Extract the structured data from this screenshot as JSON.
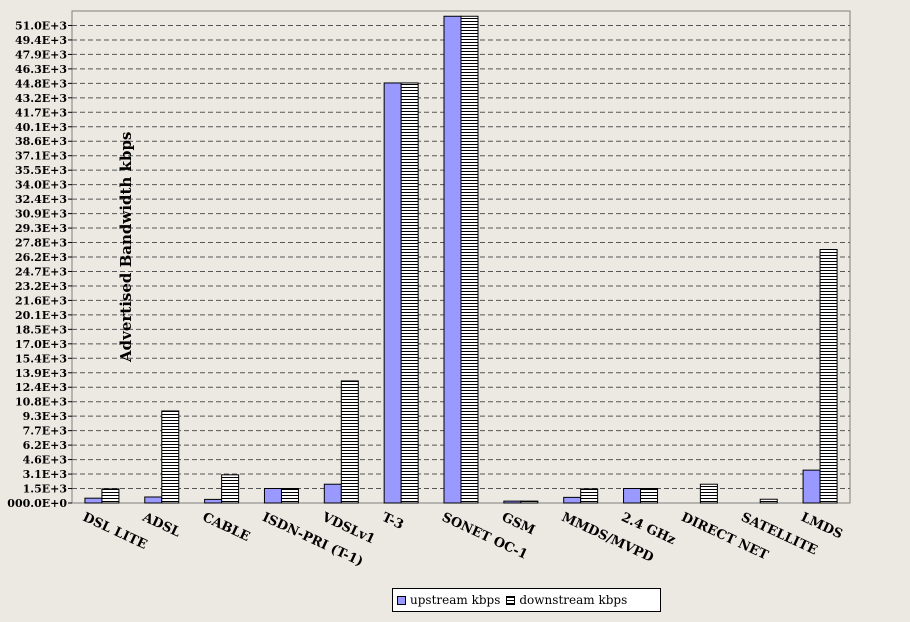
{
  "chart_data": {
    "type": "bar",
    "ylabel": "Advertised Bandwidth kbps",
    "xlabel": "",
    "ylim": [
      0,
      52400
    ],
    "yticks": [
      "000.0E+0",
      "1.5E+3",
      "3.1E+3",
      "4.6E+3",
      "6.2E+3",
      "7.7E+3",
      "9.3E+3",
      "10.8E+3",
      "12.4E+3",
      "13.9E+3",
      "15.4E+3",
      "17.0E+3",
      "18.5E+3",
      "20.1E+3",
      "21.6E+3",
      "23.2E+3",
      "24.7E+3",
      "26.2E+3",
      "27.8E+3",
      "29.3E+3",
      "30.9E+3",
      "32.4E+3",
      "34.0E+3",
      "35.5E+3",
      "37.1E+3",
      "38.6E+3",
      "40.1E+3",
      "41.7E+3",
      "43.2E+3",
      "44.8E+3",
      "46.3E+3",
      "47.9E+3",
      "49.4E+3",
      "51.0E+3"
    ],
    "categories": [
      "DSL LITE",
      "ADSL",
      "CABLE",
      "ISDN-PRI (T-1)",
      "VDSLv1",
      "T-3",
      "SONET OC-1",
      "GSM",
      "MMDS/MVPD",
      "2.4 GHz",
      "DIRECT NET",
      "SATELLITE",
      "LMDS"
    ],
    "series": [
      {
        "name": "upstream kbps",
        "color": "#9999ff",
        "values": [
          512,
          640,
          384,
          1544,
          2000,
          44736,
          51840,
          200,
          600,
          1544,
          0,
          0,
          3500
        ]
      },
      {
        "name": "downstream kbps",
        "color": "#ffffff",
        "pattern": "horizontal-stripes",
        "values": [
          1500,
          9800,
          3000,
          1544,
          13000,
          44736,
          51840,
          200,
          1500,
          1544,
          2000,
          400,
          27000
        ]
      }
    ],
    "grid": true,
    "legend_position": "bottom-center"
  }
}
